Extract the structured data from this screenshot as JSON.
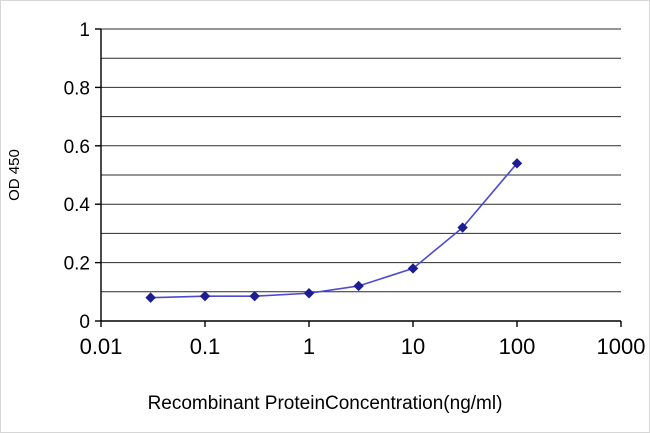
{
  "chart_data": {
    "type": "line",
    "title": "",
    "xlabel": "Recombinant ProteinConcentration(ng/ml)",
    "ylabel": "OD 450",
    "x_scale": "log",
    "xlim": [
      0.01,
      1000
    ],
    "ylim": [
      0,
      1
    ],
    "x_ticks": [
      0.01,
      0.1,
      1,
      10,
      100,
      1000
    ],
    "x_tick_labels": [
      "0.01",
      "0.1",
      "1",
      "10",
      "100",
      "1000"
    ],
    "y_ticks": [
      0,
      0.2,
      0.4,
      0.6,
      0.8,
      1
    ],
    "y_tick_labels": [
      "0",
      "0.2",
      "0.4",
      "0.6",
      "0.8",
      "1"
    ],
    "y_grid_step": 0.1,
    "grid": "horizontal",
    "legend": "none",
    "axis_color": "#000000",
    "grid_color": "#2b2b2b",
    "series": [
      {
        "name": "OD450",
        "x": [
          0.03,
          0.1,
          0.3,
          1,
          3,
          10,
          30,
          100
        ],
        "y": [
          0.08,
          0.085,
          0.085,
          0.095,
          0.12,
          0.18,
          0.32,
          0.54
        ],
        "marker": "diamond",
        "line_color": "#4a4ad2",
        "marker_color": "#1c1c93"
      }
    ]
  }
}
